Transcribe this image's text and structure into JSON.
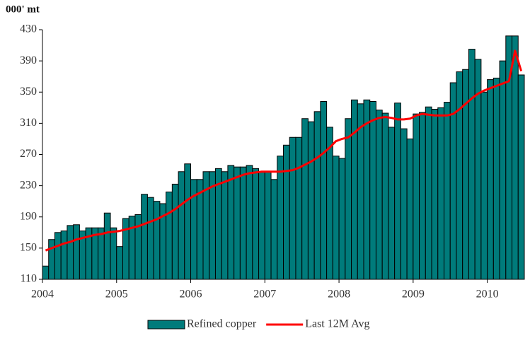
{
  "chart_data": {
    "type": "bar_line",
    "y_axis_label": "000' mt",
    "categories": [
      "2004",
      null,
      null,
      null,
      null,
      null,
      null,
      null,
      null,
      null,
      null,
      null,
      "2005",
      null,
      null,
      null,
      null,
      null,
      null,
      null,
      null,
      null,
      null,
      null,
      "2006",
      null,
      null,
      null,
      null,
      null,
      null,
      null,
      null,
      null,
      null,
      null,
      "2007",
      null,
      null,
      null,
      null,
      null,
      null,
      null,
      null,
      null,
      null,
      null,
      "2008",
      null,
      null,
      null,
      null,
      null,
      null,
      null,
      null,
      null,
      null,
      null,
      "2009",
      null,
      null,
      null,
      null,
      null,
      null,
      null,
      null,
      null,
      null,
      null,
      "2010",
      null,
      null,
      null,
      null,
      null
    ],
    "series": [
      {
        "name": "Refined copper",
        "color": "#007b7b",
        "kind": "bar",
        "values": [
          127,
          161,
          170,
          172,
          179,
          180,
          172,
          176,
          176,
          176,
          195,
          176,
          152,
          188,
          191,
          193,
          219,
          215,
          210,
          207,
          222,
          232,
          248,
          258,
          238,
          238,
          248,
          248,
          252,
          248,
          256,
          254,
          254,
          256,
          252,
          248,
          248,
          238,
          268,
          282,
          292,
          292,
          316,
          312,
          325,
          338,
          305,
          268,
          265,
          316,
          340,
          335,
          340,
          338,
          327,
          323,
          305,
          336,
          303,
          290,
          322,
          324,
          331,
          328,
          330,
          337,
          362,
          376,
          379,
          405,
          392,
          350,
          366,
          368,
          390,
          422,
          422,
          372
        ]
      },
      {
        "name": "Last 12M Avg",
        "color": "#ff0000",
        "kind": "line",
        "values": [
          147,
          150,
          153,
          156,
          158,
          161,
          163,
          165,
          167,
          168,
          170,
          171,
          172,
          174,
          176,
          178,
          181,
          184,
          187,
          191,
          195,
          200,
          206,
          212,
          217,
          221,
          225,
          229,
          232,
          235,
          238,
          241,
          244,
          246,
          247,
          248,
          248,
          248,
          248,
          249,
          250,
          253,
          257,
          261,
          266,
          272,
          279,
          287,
          290,
          292,
          298,
          305,
          310,
          314,
          317,
          318,
          317,
          315,
          315,
          316,
          320,
          322,
          321,
          320,
          320,
          320,
          322,
          328,
          335,
          342,
          348,
          352,
          355,
          358,
          361,
          364,
          403,
          377
        ]
      }
    ],
    "ylim": [
      110,
      430
    ],
    "yticks": [
      110,
      150,
      190,
      230,
      270,
      310,
      350,
      390,
      430
    ],
    "legend": "bottom"
  }
}
